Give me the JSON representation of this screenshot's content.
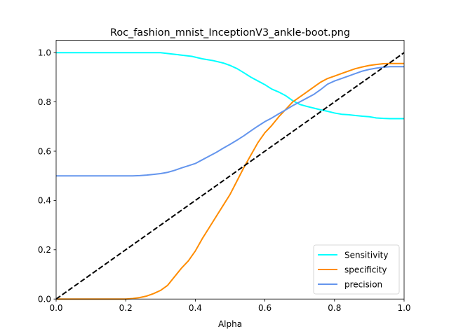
{
  "chart_data": {
    "type": "line",
    "title": "Roc_fashion_mnist_InceptionV3_ankle-boot.png",
    "xlabel": "Alpha",
    "ylabel": "",
    "xlim": [
      0,
      1
    ],
    "ylim": [
      0,
      1.05
    ],
    "x_ticks": [
      "0.0",
      "0.2",
      "0.4",
      "0.6",
      "0.8",
      "1.0"
    ],
    "y_ticks": [
      "0.0",
      "0.2",
      "0.4",
      "0.6",
      "0.8",
      "1.0"
    ],
    "grid": false,
    "legend_position": "lower-right",
    "series": [
      {
        "name": "Sensitivity",
        "color": "#00FFFF",
        "x": [
          0,
          0.05,
          0.1,
          0.15,
          0.2,
          0.25,
          0.3,
          0.33,
          0.36,
          0.39,
          0.42,
          0.45,
          0.48,
          0.5,
          0.52,
          0.54,
          0.56,
          0.58,
          0.6,
          0.62,
          0.64,
          0.66,
          0.68,
          0.7,
          0.72,
          0.74,
          0.76,
          0.78,
          0.8,
          0.82,
          0.84,
          0.86,
          0.88,
          0.9,
          0.92,
          0.94,
          0.96,
          0.98,
          1.0
        ],
        "y": [
          1.0,
          1.0,
          1.0,
          1.0,
          1.0,
          1.0,
          1.0,
          0.995,
          0.99,
          0.985,
          0.975,
          0.968,
          0.958,
          0.948,
          0.935,
          0.918,
          0.9,
          0.885,
          0.87,
          0.852,
          0.84,
          0.825,
          0.805,
          0.79,
          0.782,
          0.775,
          0.768,
          0.762,
          0.755,
          0.75,
          0.748,
          0.745,
          0.742,
          0.74,
          0.735,
          0.733,
          0.732,
          0.732,
          0.732
        ]
      },
      {
        "name": "specificity",
        "color": "#FF8C00",
        "x": [
          0,
          0.05,
          0.1,
          0.15,
          0.2,
          0.22,
          0.24,
          0.26,
          0.28,
          0.3,
          0.32,
          0.34,
          0.36,
          0.38,
          0.4,
          0.42,
          0.44,
          0.46,
          0.48,
          0.5,
          0.52,
          0.54,
          0.56,
          0.58,
          0.6,
          0.62,
          0.64,
          0.66,
          0.68,
          0.7,
          0.72,
          0.74,
          0.76,
          0.78,
          0.8,
          0.82,
          0.84,
          0.86,
          0.88,
          0.9,
          0.92,
          0.94,
          0.96,
          0.98,
          1.0
        ],
        "y": [
          0,
          0,
          0,
          0,
          0,
          0.002,
          0.006,
          0.012,
          0.022,
          0.035,
          0.055,
          0.09,
          0.125,
          0.155,
          0.195,
          0.245,
          0.29,
          0.335,
          0.38,
          0.425,
          0.48,
          0.535,
          0.585,
          0.635,
          0.675,
          0.705,
          0.74,
          0.77,
          0.8,
          0.82,
          0.84,
          0.86,
          0.88,
          0.895,
          0.905,
          0.915,
          0.925,
          0.935,
          0.942,
          0.948,
          0.952,
          0.955,
          0.956,
          0.956,
          0.956
        ]
      },
      {
        "name": "precision",
        "color": "#6495ED",
        "x": [
          0,
          0.05,
          0.1,
          0.15,
          0.2,
          0.22,
          0.24,
          0.26,
          0.28,
          0.3,
          0.32,
          0.34,
          0.36,
          0.38,
          0.4,
          0.42,
          0.44,
          0.46,
          0.48,
          0.5,
          0.52,
          0.54,
          0.56,
          0.58,
          0.6,
          0.62,
          0.64,
          0.66,
          0.68,
          0.7,
          0.72,
          0.74,
          0.76,
          0.78,
          0.8,
          0.82,
          0.84,
          0.86,
          0.88,
          0.9,
          0.92,
          0.94,
          0.96,
          0.98,
          1.0
        ],
        "y": [
          0.5,
          0.5,
          0.5,
          0.5,
          0.5,
          0.5,
          0.501,
          0.503,
          0.506,
          0.509,
          0.514,
          0.522,
          0.532,
          0.541,
          0.55,
          0.565,
          0.58,
          0.595,
          0.612,
          0.628,
          0.645,
          0.663,
          0.683,
          0.702,
          0.72,
          0.735,
          0.752,
          0.768,
          0.785,
          0.8,
          0.815,
          0.83,
          0.85,
          0.872,
          0.885,
          0.895,
          0.905,
          0.915,
          0.925,
          0.932,
          0.937,
          0.941,
          0.943,
          0.943,
          0.943
        ]
      },
      {
        "name": "",
        "color": "#000000",
        "dashed": true,
        "x": [
          0,
          1
        ],
        "y": [
          0,
          1
        ]
      }
    ]
  }
}
